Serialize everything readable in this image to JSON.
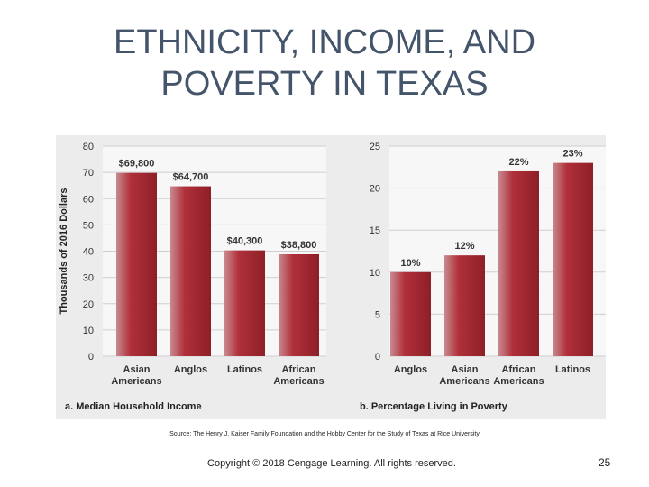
{
  "slide": {
    "title_line1": "ETHNICITY, INCOME, AND",
    "title_line2": "POVERTY IN TEXAS",
    "source": "Source: The Henry J. Kaiser Family Foundation and the Hobby Center for the Study of Texas at Rice University",
    "copyright": "Copyright © 2018 Cengage Learning.  All rights reserved.",
    "page_number": "25"
  },
  "colors": {
    "bar": "#b0303a",
    "bar_dark": "#8e1f27",
    "grid": "#ffffff",
    "panel": "#ececec"
  },
  "chart_data": [
    {
      "type": "bar",
      "caption": "a. Median Household Income",
      "ylabel": "Thousands of 2016 Dollars",
      "categories": [
        [
          "Asian",
          "Americans"
        ],
        [
          "Anglos"
        ],
        [
          "Latinos"
        ],
        [
          "African",
          "Americans"
        ]
      ],
      "values": [
        69.8,
        64.7,
        40.3,
        38.8
      ],
      "data_labels": [
        "$69,800",
        "$64,700",
        "$40,300",
        "$38,800"
      ],
      "ylim": [
        0,
        80
      ],
      "yticks": [
        0,
        10,
        20,
        30,
        40,
        50,
        60,
        70,
        80
      ],
      "grid": true
    },
    {
      "type": "bar",
      "caption": "b. Percentage Living in Poverty",
      "ylabel": "",
      "categories": [
        [
          "Anglos"
        ],
        [
          "Asian",
          "Americans"
        ],
        [
          "African",
          "Americans"
        ],
        [
          "Latinos"
        ]
      ],
      "values": [
        10,
        12,
        22,
        23
      ],
      "data_labels": [
        "10%",
        "12%",
        "22%",
        "23%"
      ],
      "ylim": [
        0,
        25
      ],
      "yticks": [
        0,
        5,
        10,
        15,
        20,
        25
      ],
      "grid": true
    }
  ]
}
